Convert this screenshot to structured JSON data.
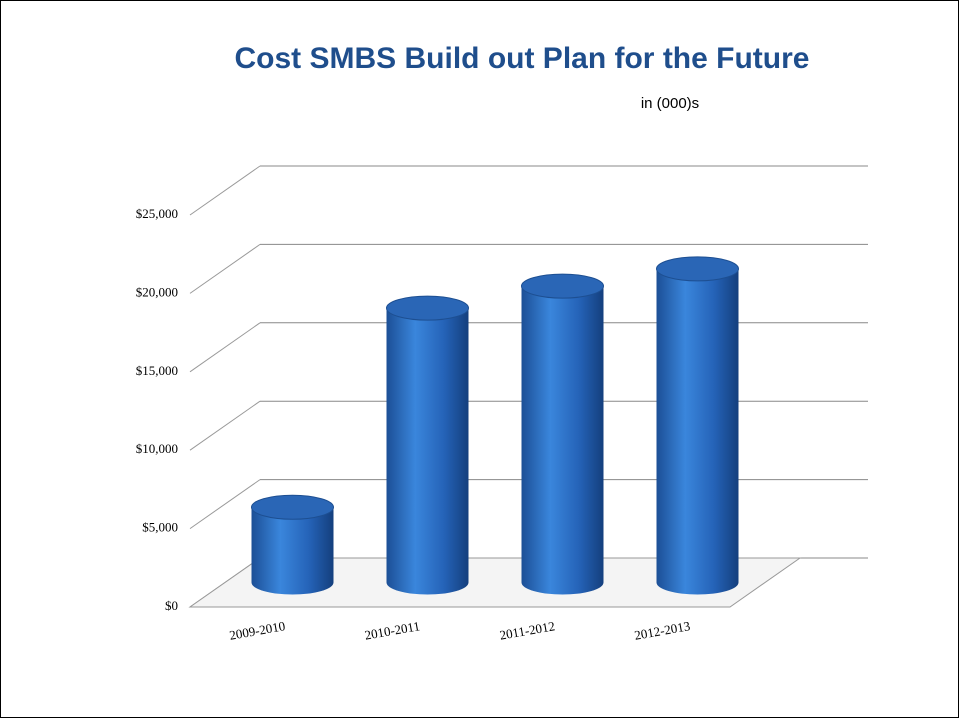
{
  "chart_data": {
    "type": "bar3d",
    "title": "Cost SMBS Build out Plan for the Future",
    "subtitle": "in (000)s",
    "categories": [
      "2009-2010",
      "2010-2011",
      "2011-2012",
      "2012-2013"
    ],
    "values": [
      4800,
      17500,
      18900,
      20000
    ],
    "color": "#2f6fc4",
    "ylim": [
      0,
      25000
    ],
    "yticks": [
      {
        "value": 0,
        "label": "$0"
      },
      {
        "value": 5000,
        "label": "$5,000"
      },
      {
        "value": 10000,
        "label": "$10,000"
      },
      {
        "value": 15000,
        "label": "$15,000"
      },
      {
        "value": 20000,
        "label": "$20,000"
      },
      {
        "value": 25000,
        "label": "$25,000"
      }
    ],
    "grid": true
  }
}
